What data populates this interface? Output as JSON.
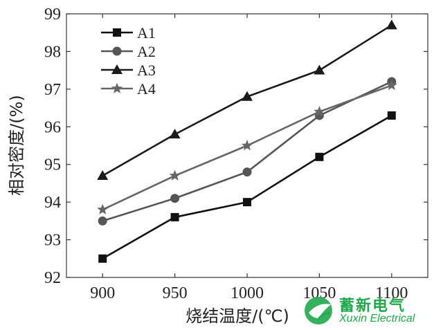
{
  "chart_data": {
    "type": "line",
    "xlabel": "烧结温度/(℃)",
    "ylabel": "相对密度/(%)",
    "x": [
      900,
      950,
      1000,
      1050,
      1100
    ],
    "xticks": [
      "900",
      "950",
      "1000",
      "1050",
      "1100"
    ],
    "yticks": [
      "92",
      "93",
      "94",
      "95",
      "96",
      "97",
      "98",
      "99"
    ],
    "xlim": [
      875,
      1125
    ],
    "ylim": [
      92,
      99
    ],
    "legend_position": "top-left",
    "grid": false,
    "series": [
      {
        "name": "A1",
        "marker": "square",
        "color": "#111111",
        "values": [
          92.5,
          93.6,
          94.0,
          95.2,
          96.3
        ]
      },
      {
        "name": "A2",
        "marker": "circle",
        "color": "#555555",
        "values": [
          93.5,
          94.1,
          94.8,
          96.3,
          97.2
        ]
      },
      {
        "name": "A3",
        "marker": "triangle",
        "color": "#1a1a1a",
        "values": [
          94.7,
          95.8,
          96.8,
          97.5,
          98.7
        ]
      },
      {
        "name": "A4",
        "marker": "star",
        "color": "#666666",
        "values": [
          93.8,
          94.7,
          95.5,
          96.4,
          97.1
        ]
      }
    ]
  },
  "watermark": {
    "title": "蓄新电气",
    "subtitle": "Xuxin Electrical",
    "color": "#1fa84b"
  }
}
